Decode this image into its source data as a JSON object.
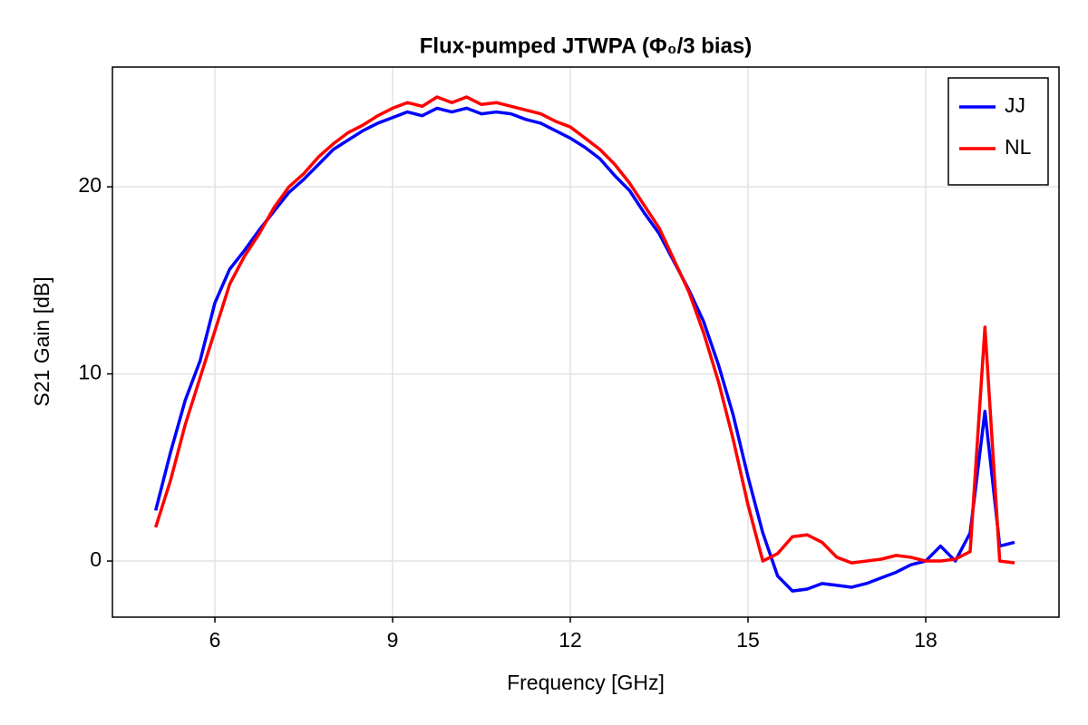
{
  "chart_data": {
    "type": "line",
    "title": "Flux-pumped JTWPA (Φ₀/3 bias)",
    "x_label": "Frequency [GHz]",
    "y_label": "S21 Gain [dB]",
    "x": [
      5.0,
      5.25,
      5.5,
      5.75,
      6.0,
      6.25,
      6.5,
      6.75,
      7.0,
      7.25,
      7.5,
      7.75,
      8.0,
      8.25,
      8.5,
      8.75,
      9.0,
      9.25,
      9.5,
      9.75,
      10.0,
      10.25,
      10.5,
      10.75,
      11.0,
      11.25,
      11.5,
      11.75,
      12.0,
      12.25,
      12.5,
      12.75,
      13.0,
      13.25,
      13.5,
      13.75,
      14.0,
      14.25,
      14.5,
      14.75,
      15.0,
      15.25,
      15.5,
      15.75,
      16.0,
      16.25,
      16.5,
      16.75,
      17.0,
      17.25,
      17.5,
      17.75,
      18.0,
      18.25,
      18.5,
      18.75,
      19.0,
      19.25,
      19.5
    ],
    "series": [
      {
        "name": "JJ",
        "color": "#0000ff",
        "values": [
          2.7,
          5.8,
          8.6,
          10.7,
          13.8,
          15.6,
          16.6,
          17.7,
          18.7,
          19.7,
          20.4,
          21.2,
          22.0,
          22.5,
          23.0,
          23.4,
          23.7,
          24.0,
          23.8,
          24.2,
          24.0,
          24.2,
          23.9,
          24.0,
          23.9,
          23.6,
          23.4,
          23.0,
          22.6,
          22.1,
          21.5,
          20.6,
          19.8,
          18.6,
          17.5,
          16.0,
          14.5,
          12.8,
          10.5,
          7.8,
          4.5,
          1.5,
          -0.8,
          -1.6,
          -1.5,
          -1.2,
          -1.3,
          -1.4,
          -1.2,
          -0.9,
          -0.6,
          -0.2,
          0.0,
          0.8,
          0.0,
          1.5,
          8.0,
          0.8,
          1.0
        ]
      },
      {
        "name": "NL",
        "color": "#ff0000",
        "values": [
          1.8,
          4.3,
          7.3,
          9.8,
          12.3,
          14.8,
          16.3,
          17.5,
          18.9,
          20.0,
          20.7,
          21.6,
          22.3,
          22.9,
          23.3,
          23.8,
          24.2,
          24.5,
          24.3,
          24.8,
          24.5,
          24.8,
          24.4,
          24.5,
          24.3,
          24.1,
          23.9,
          23.5,
          23.2,
          22.6,
          22.0,
          21.2,
          20.2,
          19.0,
          17.8,
          16.1,
          14.4,
          12.2,
          9.6,
          6.5,
          3.0,
          0.0,
          0.4,
          1.3,
          1.4,
          1.0,
          0.2,
          -0.1,
          0.0,
          0.1,
          0.3,
          0.2,
          0.0,
          0.0,
          0.1,
          0.5,
          12.5,
          0.0,
          -0.1
        ]
      }
    ],
    "xlim": [
      4.27,
      20.25
    ],
    "ylim": [
      -3.0,
      26.4
    ],
    "xticks": [
      6,
      9,
      12,
      15,
      18
    ],
    "yticks": [
      0,
      10,
      20
    ],
    "grid": true,
    "legend": "top-right"
  }
}
